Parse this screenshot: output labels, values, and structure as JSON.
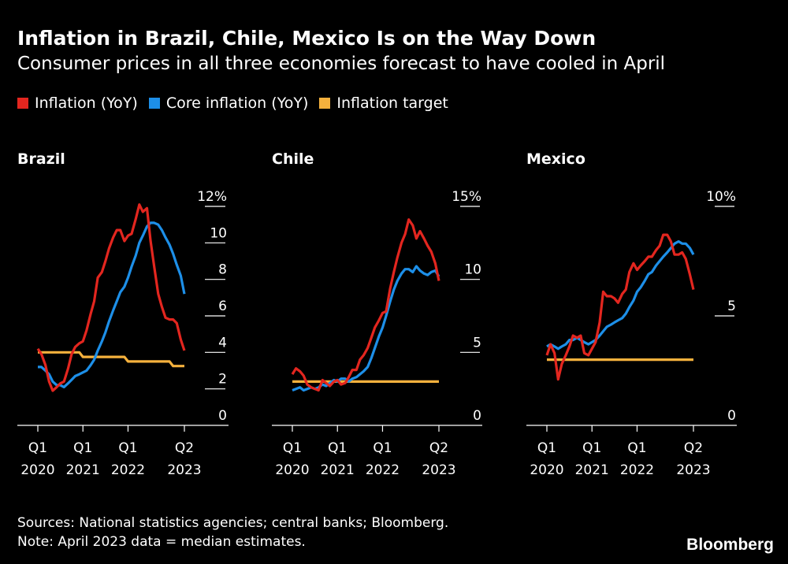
{
  "title": "Inflation in Brazil, Chile, Mexico Is on the Way Down",
  "subtitle": "Consumer prices in all three economies forecast to have cooled in April",
  "legend": [
    {
      "label": "Inflation (YoY)",
      "color": "#e3261f"
    },
    {
      "label": "Core inflation (YoY)",
      "color": "#1d8fe8"
    },
    {
      "label": "Inflation target",
      "color": "#f5b13d"
    }
  ],
  "footer": {
    "sources": "Sources: National statistics agencies; central banks; Bloomberg.",
    "note": "Note: April 2023 data = median estimates."
  },
  "brand": "Bloomberg",
  "chart_data": [
    {
      "type": "line",
      "title": "Brazil",
      "unit": "%",
      "ylim": [
        0,
        12
      ],
      "yticks": [
        0,
        2,
        4,
        6,
        8,
        10,
        12
      ],
      "xlim": [
        2020.0,
        2023.25
      ],
      "xticks": [
        {
          "x": 2020.0,
          "label": [
            "Q1",
            "2020"
          ]
        },
        {
          "x": 2021.0,
          "label": [
            "Q1",
            "2021"
          ]
        },
        {
          "x": 2022.0,
          "label": [
            "Q1",
            "2022"
          ]
        },
        {
          "x": 2023.25,
          "label": [
            "Q2",
            "2023"
          ]
        }
      ],
      "series": [
        {
          "key": "inflation",
          "color": "#e3261f",
          "x": [
            2020.0,
            2020.08,
            2020.17,
            2020.25,
            2020.33,
            2020.42,
            2020.5,
            2020.58,
            2020.67,
            2020.75,
            2020.83,
            2020.92,
            2021.0,
            2021.08,
            2021.17,
            2021.25,
            2021.33,
            2021.42,
            2021.5,
            2021.58,
            2021.67,
            2021.75,
            2021.83,
            2021.92,
            2022.0,
            2022.08,
            2022.17,
            2022.25,
            2022.33,
            2022.42,
            2022.5,
            2022.58,
            2022.67,
            2022.75,
            2022.83,
            2022.92,
            2023.0,
            2023.08,
            2023.17,
            2023.25
          ],
          "y": [
            4.2,
            3.9,
            3.3,
            2.4,
            1.9,
            2.1,
            2.3,
            2.4,
            3.1,
            3.9,
            4.3,
            4.5,
            4.6,
            5.2,
            6.1,
            6.8,
            8.1,
            8.4,
            9.0,
            9.7,
            10.3,
            10.7,
            10.7,
            10.1,
            10.4,
            10.5,
            11.3,
            12.1,
            11.7,
            11.9,
            10.1,
            8.7,
            7.2,
            6.5,
            5.9,
            5.8,
            5.8,
            5.6,
            4.7,
            4.1
          ]
        },
        {
          "key": "core",
          "color": "#1d8fe8",
          "x": [
            2020.0,
            2020.08,
            2020.17,
            2020.25,
            2020.33,
            2020.42,
            2020.5,
            2020.58,
            2020.67,
            2020.75,
            2020.83,
            2020.92,
            2021.0,
            2021.08,
            2021.17,
            2021.25,
            2021.33,
            2021.42,
            2021.5,
            2021.58,
            2021.67,
            2021.75,
            2021.83,
            2021.92,
            2022.0,
            2022.08,
            2022.17,
            2022.25,
            2022.33,
            2022.42,
            2022.5,
            2022.58,
            2022.67,
            2022.75,
            2022.83,
            2022.92,
            2023.0,
            2023.08,
            2023.17,
            2023.25
          ],
          "y": [
            3.2,
            3.2,
            3.0,
            2.8,
            2.4,
            2.2,
            2.2,
            2.1,
            2.3,
            2.5,
            2.7,
            2.8,
            2.9,
            3.0,
            3.3,
            3.6,
            4.1,
            4.6,
            5.1,
            5.7,
            6.3,
            6.8,
            7.3,
            7.6,
            8.1,
            8.7,
            9.3,
            10.0,
            10.4,
            10.9,
            11.1,
            11.1,
            11.0,
            10.7,
            10.3,
            9.9,
            9.4,
            8.8,
            8.2,
            7.2
          ]
        },
        {
          "key": "target",
          "color": "#f5b13d",
          "x": [
            2020.0,
            2020.92,
            2021.0,
            2021.92,
            2022.0,
            2022.92,
            2023.0,
            2023.25
          ],
          "y": [
            4.0,
            4.0,
            3.75,
            3.75,
            3.5,
            3.5,
            3.25,
            3.25
          ]
        }
      ]
    },
    {
      "type": "line",
      "title": "Chile",
      "unit": "%",
      "ylim": [
        0,
        15
      ],
      "yticks": [
        0,
        5,
        10,
        15
      ],
      "xlim": [
        2020.0,
        2023.25
      ],
      "xticks": [
        {
          "x": 2020.0,
          "label": [
            "Q1",
            "2020"
          ]
        },
        {
          "x": 2021.0,
          "label": [
            "Q1",
            "2021"
          ]
        },
        {
          "x": 2022.0,
          "label": [
            "Q1",
            "2022"
          ]
        },
        {
          "x": 2023.25,
          "label": [
            "Q2",
            "2023"
          ]
        }
      ],
      "series": [
        {
          "key": "inflation",
          "color": "#e3261f",
          "x": [
            2020.0,
            2020.08,
            2020.17,
            2020.25,
            2020.33,
            2020.42,
            2020.5,
            2020.58,
            2020.67,
            2020.75,
            2020.83,
            2020.92,
            2021.0,
            2021.08,
            2021.17,
            2021.25,
            2021.33,
            2021.42,
            2021.5,
            2021.58,
            2021.67,
            2021.75,
            2021.83,
            2021.92,
            2022.0,
            2022.08,
            2022.17,
            2022.25,
            2022.33,
            2022.42,
            2022.5,
            2022.58,
            2022.67,
            2022.75,
            2022.83,
            2022.92,
            2023.0,
            2023.08,
            2023.17,
            2023.25
          ],
          "y": [
            3.5,
            3.9,
            3.7,
            3.4,
            2.8,
            2.6,
            2.5,
            2.4,
            3.1,
            2.9,
            2.7,
            3.0,
            3.1,
            2.8,
            2.9,
            3.3,
            3.8,
            3.8,
            4.5,
            4.8,
            5.3,
            6.0,
            6.7,
            7.2,
            7.7,
            7.8,
            9.4,
            10.5,
            11.5,
            12.5,
            13.1,
            14.1,
            13.7,
            12.8,
            13.3,
            12.8,
            12.3,
            11.9,
            11.1,
            9.9
          ]
        },
        {
          "key": "core",
          "color": "#1d8fe8",
          "x": [
            2020.0,
            2020.08,
            2020.17,
            2020.25,
            2020.33,
            2020.42,
            2020.5,
            2020.58,
            2020.67,
            2020.75,
            2020.83,
            2020.92,
            2021.0,
            2021.08,
            2021.17,
            2021.25,
            2021.33,
            2021.42,
            2021.5,
            2021.58,
            2021.67,
            2021.75,
            2021.83,
            2021.92,
            2022.0,
            2022.08,
            2022.17,
            2022.25,
            2022.33,
            2022.42,
            2022.5,
            2022.58,
            2022.67,
            2022.75,
            2022.83,
            2022.92,
            2023.0,
            2023.08,
            2023.17,
            2023.25
          ],
          "y": [
            2.4,
            2.5,
            2.6,
            2.4,
            2.5,
            2.6,
            2.5,
            2.6,
            2.8,
            2.7,
            2.9,
            3.1,
            3.0,
            3.2,
            3.2,
            3.0,
            3.2,
            3.3,
            3.5,
            3.7,
            4.0,
            4.6,
            5.3,
            6.1,
            6.7,
            7.5,
            8.5,
            9.3,
            9.9,
            10.4,
            10.7,
            10.7,
            10.5,
            10.9,
            10.6,
            10.4,
            10.3,
            10.5,
            10.6,
            10.2
          ]
        },
        {
          "key": "target",
          "color": "#f5b13d",
          "x": [
            2020.0,
            2023.25
          ],
          "y": [
            3.0,
            3.0
          ]
        }
      ]
    },
    {
      "type": "line",
      "title": "Mexico",
      "unit": "%",
      "ylim": [
        0,
        10
      ],
      "yticks": [
        0,
        5,
        10
      ],
      "xlim": [
        2020.0,
        2023.25
      ],
      "xticks": [
        {
          "x": 2020.0,
          "label": [
            "Q1",
            "2020"
          ]
        },
        {
          "x": 2021.0,
          "label": [
            "Q1",
            "2021"
          ]
        },
        {
          "x": 2022.0,
          "label": [
            "Q1",
            "2022"
          ]
        },
        {
          "x": 2023.25,
          "label": [
            "Q2",
            "2023"
          ]
        }
      ],
      "series": [
        {
          "key": "inflation",
          "color": "#e3261f",
          "x": [
            2020.0,
            2020.08,
            2020.17,
            2020.25,
            2020.33,
            2020.42,
            2020.5,
            2020.58,
            2020.67,
            2020.75,
            2020.83,
            2020.92,
            2021.0,
            2021.08,
            2021.17,
            2021.25,
            2021.33,
            2021.42,
            2021.5,
            2021.58,
            2021.67,
            2021.75,
            2021.83,
            2021.92,
            2022.0,
            2022.08,
            2022.17,
            2022.25,
            2022.33,
            2022.42,
            2022.5,
            2022.58,
            2022.67,
            2022.75,
            2022.83,
            2022.92,
            2023.0,
            2023.08,
            2023.17,
            2023.25
          ],
          "y": [
            3.2,
            3.7,
            3.3,
            2.1,
            2.8,
            3.2,
            3.6,
            4.1,
            4.0,
            4.1,
            3.3,
            3.2,
            3.5,
            3.8,
            4.7,
            6.1,
            5.9,
            5.9,
            5.8,
            5.6,
            6.0,
            6.2,
            7.0,
            7.4,
            7.1,
            7.3,
            7.5,
            7.7,
            7.7,
            8.0,
            8.2,
            8.7,
            8.7,
            8.4,
            7.8,
            7.8,
            7.9,
            7.6,
            6.9,
            6.2
          ]
        },
        {
          "key": "core",
          "color": "#1d8fe8",
          "x": [
            2020.0,
            2020.08,
            2020.17,
            2020.25,
            2020.33,
            2020.42,
            2020.5,
            2020.58,
            2020.67,
            2020.75,
            2020.83,
            2020.92,
            2021.0,
            2021.08,
            2021.17,
            2021.25,
            2021.33,
            2021.42,
            2021.5,
            2021.58,
            2021.67,
            2021.75,
            2021.83,
            2021.92,
            2022.0,
            2022.08,
            2022.17,
            2022.25,
            2022.33,
            2022.42,
            2022.5,
            2022.58,
            2022.67,
            2022.75,
            2022.83,
            2022.92,
            2023.0,
            2023.08,
            2023.17,
            2023.25
          ],
          "y": [
            3.6,
            3.7,
            3.6,
            3.5,
            3.6,
            3.7,
            3.9,
            3.9,
            4.0,
            3.9,
            3.8,
            3.7,
            3.8,
            3.9,
            4.1,
            4.3,
            4.5,
            4.6,
            4.7,
            4.8,
            4.9,
            5.1,
            5.4,
            5.7,
            6.1,
            6.3,
            6.6,
            6.9,
            7.0,
            7.3,
            7.5,
            7.7,
            7.9,
            8.1,
            8.3,
            8.4,
            8.3,
            8.3,
            8.1,
            7.8
          ]
        },
        {
          "key": "target",
          "color": "#f5b13d",
          "x": [
            2020.0,
            2023.25
          ],
          "y": [
            3.0,
            3.0
          ]
        }
      ]
    }
  ]
}
